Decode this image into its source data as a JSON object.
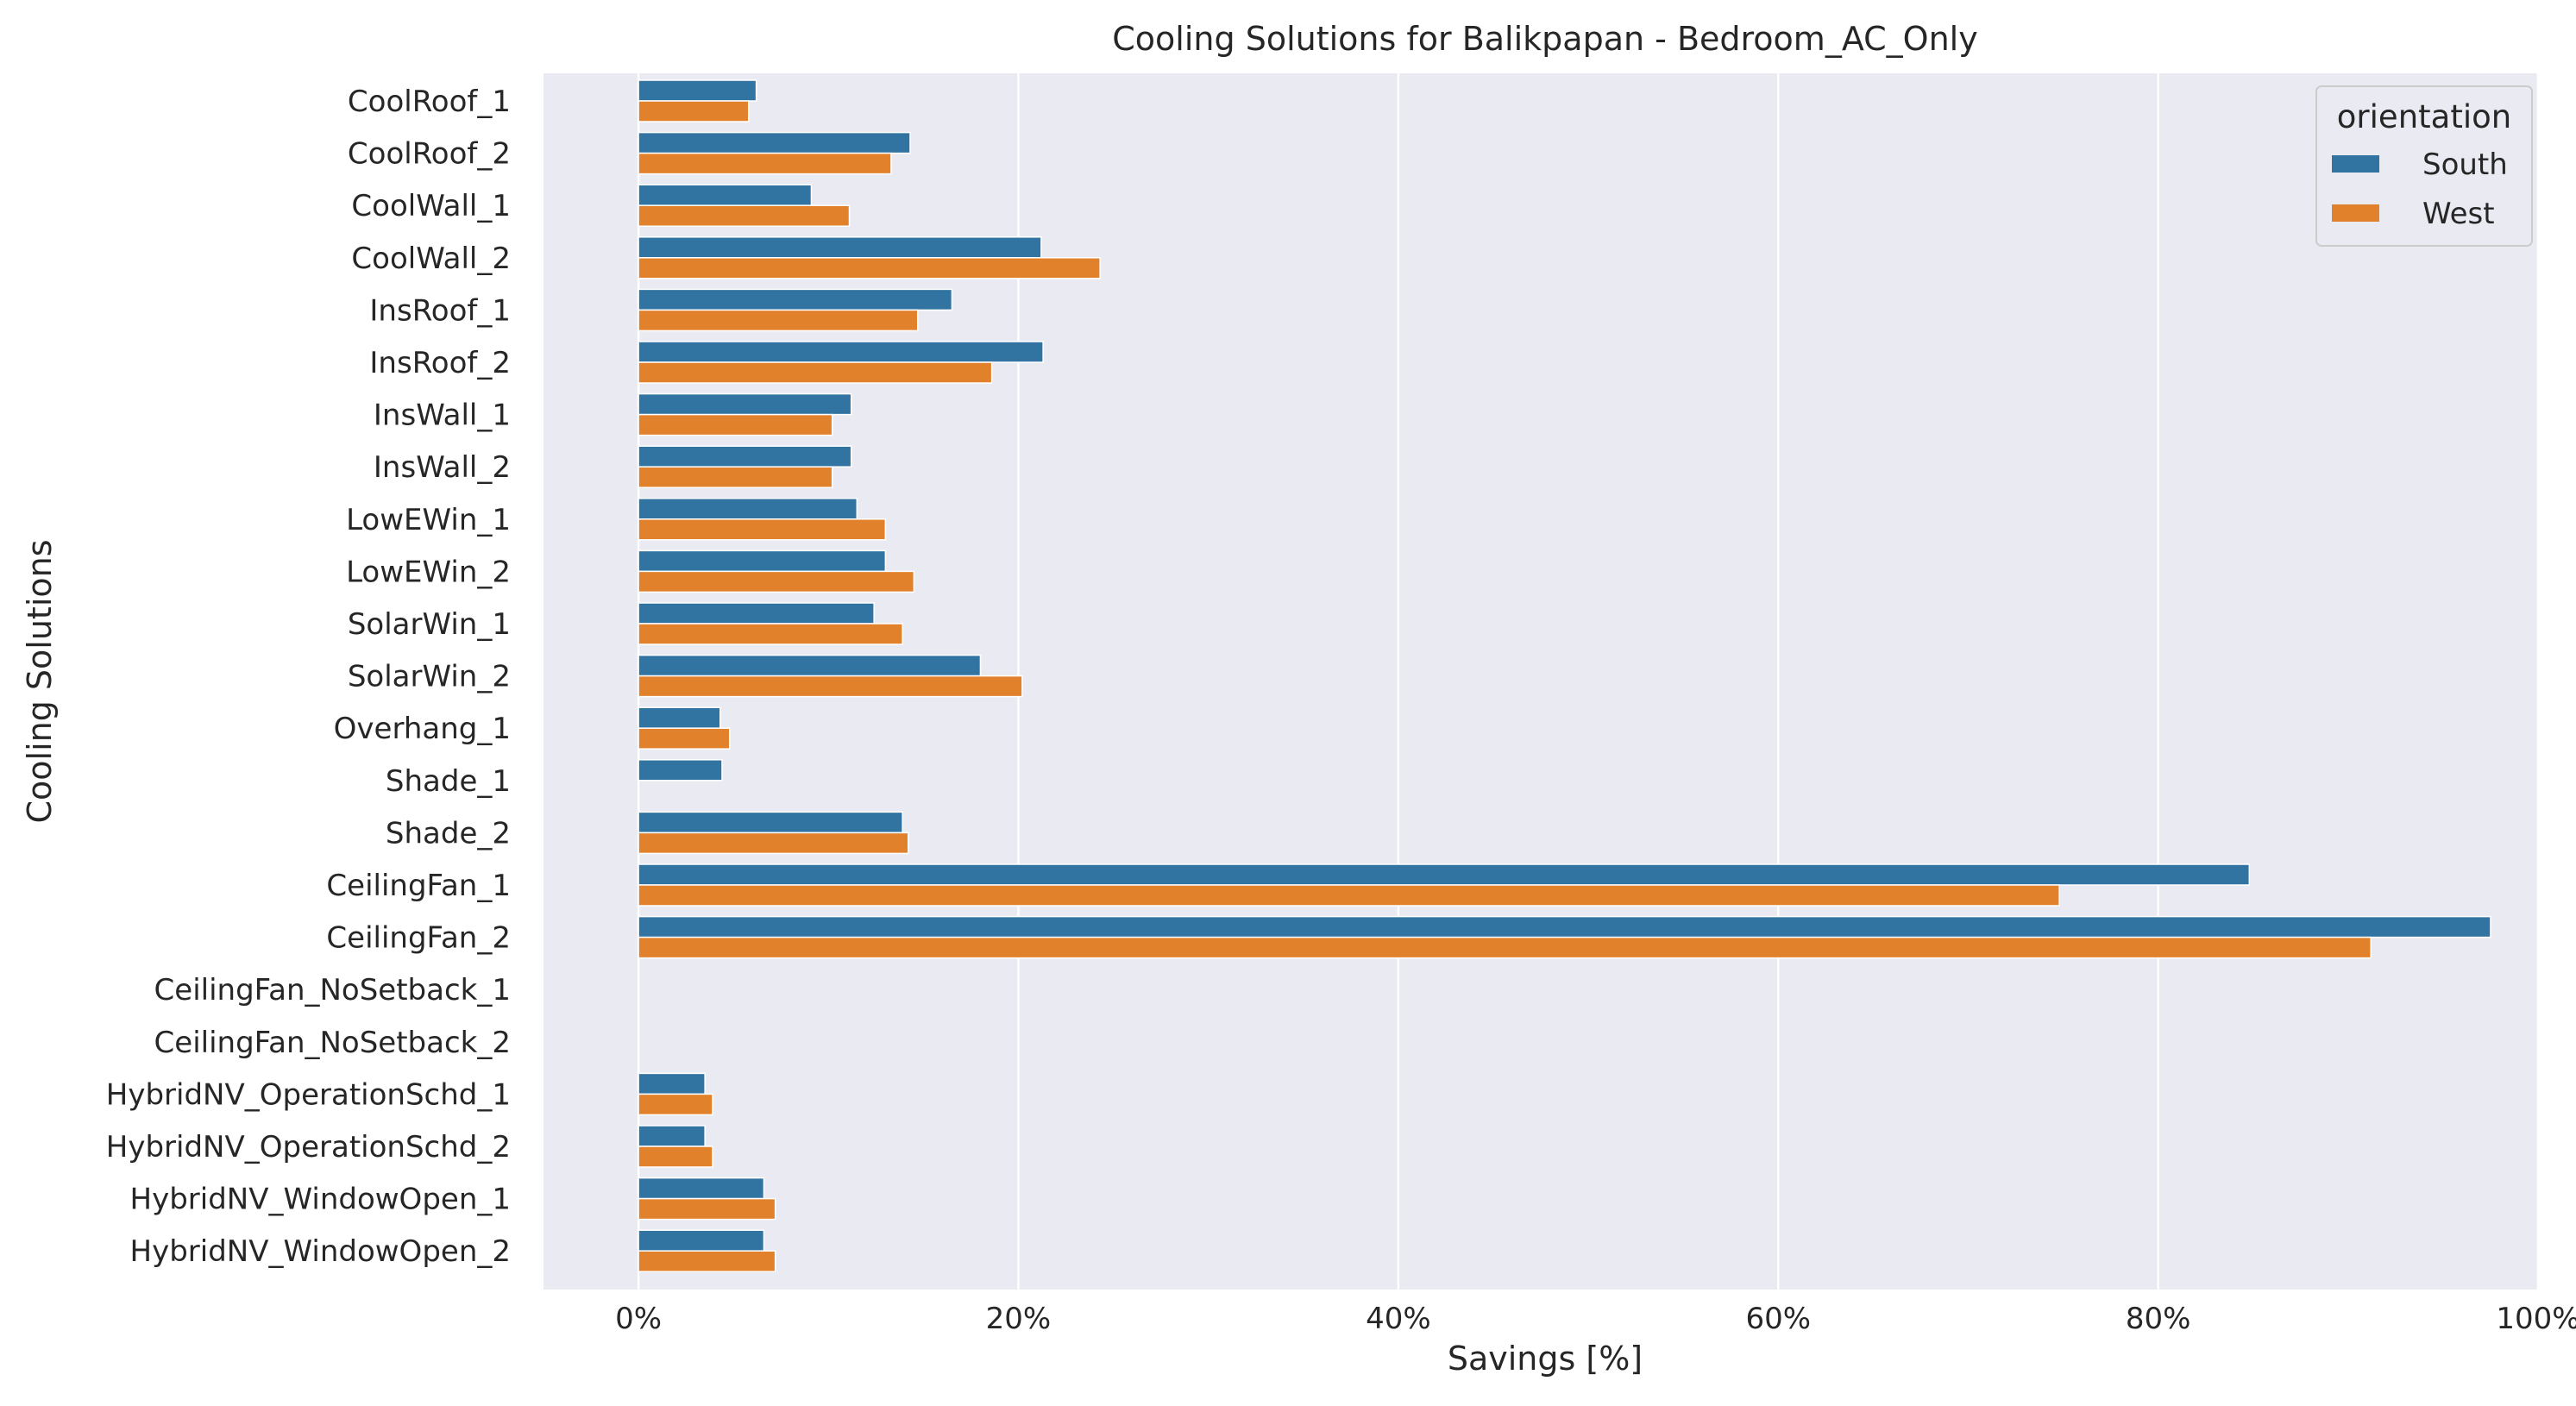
{
  "chart_data": {
    "type": "bar",
    "orientation": "horizontal",
    "title": "Cooling Solutions for Balikpapan - Bedroom_AC_Only",
    "xlabel": "Savings [%]",
    "ylabel": "Cooling Solutions",
    "xlim": [
      -5,
      100
    ],
    "x_ticks": [
      0,
      20,
      40,
      60,
      80,
      100
    ],
    "x_tick_labels": [
      "0%",
      "20%",
      "40%",
      "60%",
      "80%",
      "100%"
    ],
    "grid": "vertical",
    "legend": {
      "title": "orientation",
      "position": "top-right"
    },
    "categories": [
      "CoolRoof_1",
      "CoolRoof_2",
      "CoolWall_1",
      "CoolWall_2",
      "InsRoof_1",
      "InsRoof_2",
      "InsWall_1",
      "InsWall_2",
      "LowEWin_1",
      "LowEWin_2",
      "SolarWin_1",
      "SolarWin_2",
      "Overhang_1",
      "Shade_1",
      "Shade_2",
      "CeilingFan_1",
      "CeilingFan_2",
      "CeilingFan_NoSetback_1",
      "CeilingFan_NoSetback_2",
      "HybridNV_OperationSchd_1",
      "HybridNV_OperationSchd_2",
      "HybridNV_WindowOpen_1",
      "HybridNV_WindowOpen_2"
    ],
    "series": [
      {
        "name": "South",
        "color": "#3274a1",
        "values": [
          6.2,
          14.3,
          9.1,
          21.2,
          16.5,
          21.3,
          11.2,
          11.2,
          11.5,
          13.0,
          12.4,
          18.0,
          4.3,
          4.4,
          13.9,
          84.8,
          97.5,
          0,
          0,
          3.5,
          3.5,
          6.6,
          6.6
        ]
      },
      {
        "name": "West",
        "color": "#e1812c",
        "values": [
          5.8,
          13.3,
          11.1,
          24.3,
          14.7,
          18.6,
          10.2,
          10.2,
          13.0,
          14.5,
          13.9,
          20.2,
          4.8,
          0,
          14.2,
          74.8,
          91.2,
          0,
          0,
          3.9,
          3.9,
          7.2,
          7.2
        ]
      }
    ]
  }
}
